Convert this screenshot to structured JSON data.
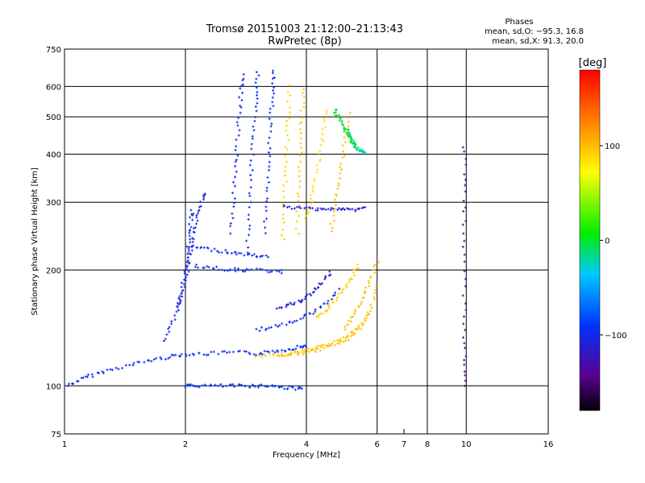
{
  "chart_data": {
    "type": "scatter",
    "title": "Tromsø 20151003 21:12:00–21:13:43",
    "subtitle": "RwPretec (8p)",
    "xlabel": "Frequency [MHz]",
    "ylabel": "Stationary phase Virtual Height [km]",
    "x_scale": "log",
    "y_scale": "log",
    "xlim": [
      1,
      16
    ],
    "ylim": [
      75,
      750
    ],
    "x_ticks": [
      1,
      2,
      4,
      6,
      8,
      10,
      16
    ],
    "x_tick_labels": [
      "1",
      "2",
      "4",
      "6",
      "8",
      "10",
      "16"
    ],
    "x_minor_ticks": [
      7
    ],
    "x_minor_tick_labels": [
      "7"
    ],
    "y_ticks": [
      75,
      100,
      200,
      300,
      400,
      500,
      600,
      750
    ],
    "y_tick_labels": [
      "75",
      "100",
      "200",
      "300",
      "400",
      "500",
      "600",
      "750"
    ],
    "grid": true,
    "phase_stats": {
      "heading": "Phases",
      "o_line": "mean, sd,O: −95.3, 16.8",
      "x_line": "mean, sd,X:  91.3, 20.0"
    },
    "colorbar": {
      "label": "[deg]",
      "range": [
        -180,
        180
      ],
      "ticks": [
        100,
        0,
        -100
      ],
      "tick_labels": [
        "100",
        "0",
        "−100"
      ],
      "colormap": "rainbow"
    },
    "colors": {
      "o_mode": "#1e3cff",
      "x_mode": "#e6e61e",
      "grid": "#000000"
    },
    "traces": [
      {
        "freq": [
          1.02,
          1.1,
          1.18,
          1.3,
          1.45,
          1.6,
          1.75,
          1.9,
          2.05,
          2.25,
          2.5,
          2.8,
          3.05,
          3.3,
          3.55,
          3.8,
          4.0
        ],
        "height": [
          100,
          104,
          107,
          110,
          113,
          116,
          118,
          120,
          121,
          121,
          122,
          122,
          121,
          123,
          124,
          126,
          127
        ],
        "phase": -95
      },
      {
        "freq": [
          2.0,
          2.1,
          2.25,
          2.5,
          2.7,
          2.9,
          3.1,
          3.3,
          3.5,
          3.7,
          3.9
        ],
        "height": [
          100,
          100,
          100,
          100,
          100,
          100,
          100,
          100,
          99,
          99,
          98
        ],
        "phase": -90
      },
      {
        "freq": [
          3.0,
          3.3,
          3.6,
          3.9,
          4.2,
          4.5,
          4.8,
          5.1,
          5.4,
          5.7
        ],
        "height": [
          119,
          120,
          121,
          123,
          125,
          128,
          131,
          135,
          142,
          155
        ],
        "phase": 95
      },
      {
        "freq": [
          3.4,
          3.7,
          4.0,
          4.3,
          4.6,
          4.9,
          5.2,
          5.5,
          5.8,
          6.0
        ],
        "height": [
          120,
          121,
          122,
          124,
          127,
          130,
          135,
          143,
          160,
          180
        ],
        "phase": 100
      },
      {
        "freq": [
          1.78,
          1.85,
          1.92,
          1.97,
          2.02,
          2.06,
          2.1,
          2.14,
          2.18,
          2.24
        ],
        "height": [
          130,
          145,
          160,
          178,
          200,
          222,
          248,
          272,
          295,
          318
        ],
        "phase": -105
      },
      {
        "freq": [
          1.92,
          1.95,
          2.0,
          2.02,
          2.04,
          2.06,
          2.08
        ],
        "height": [
          160,
          175,
          195,
          215,
          240,
          265,
          285
        ],
        "phase": -100
      },
      {
        "freq": [
          2.05,
          2.2,
          2.4,
          2.6,
          2.8,
          3.0,
          3.2
        ],
        "height": [
          230,
          228,
          225,
          222,
          220,
          218,
          216
        ],
        "phase": -95
      },
      {
        "freq": [
          2.1,
          2.3,
          2.5,
          2.7,
          2.9,
          3.2,
          3.5
        ],
        "height": [
          205,
          203,
          201,
          200,
          200,
          199,
          198
        ],
        "phase": -90
      },
      {
        "freq": [
          2.6,
          2.63,
          2.66,
          2.69,
          2.72,
          2.75,
          2.78
        ],
        "height": [
          250,
          300,
          360,
          420,
          500,
          580,
          640
        ],
        "phase": -100
      },
      {
        "freq": [
          2.85,
          2.88,
          2.91,
          2.94,
          2.97,
          3.0,
          3.03
        ],
        "height": [
          230,
          280,
          340,
          410,
          490,
          570,
          650
        ],
        "phase": -95
      },
      {
        "freq": [
          3.15,
          3.18,
          3.21,
          3.24,
          3.27,
          3.3,
          3.33
        ],
        "height": [
          250,
          300,
          360,
          430,
          510,
          590,
          660
        ],
        "phase": -98
      },
      {
        "freq": [
          3.5,
          3.52,
          3.55,
          3.58,
          3.6,
          3.63
        ],
        "height": [
          240,
          290,
          350,
          420,
          500,
          600
        ],
        "phase": 90
      },
      {
        "freq": [
          3.8,
          3.82,
          3.85,
          3.88,
          3.9,
          3.93
        ],
        "height": [
          250,
          300,
          360,
          430,
          500,
          590
        ],
        "phase": 95
      },
      {
        "freq": [
          3.5,
          3.8,
          4.1,
          4.4,
          4.7,
          5.0,
          5.3,
          5.6
        ],
        "height": [
          292,
          290,
          289,
          288,
          288,
          287,
          287,
          290
        ],
        "phase": -110
      },
      {
        "freq": [
          5.0,
          5.1,
          5.2,
          5.3,
          5.4,
          5.5,
          5.6
        ],
        "height": [
          470,
          450,
          435,
          420,
          410,
          405,
          402
        ],
        "phase": -20
      },
      {
        "freq": [
          4.7,
          4.8,
          4.9,
          5.0,
          5.1,
          5.2,
          5.3
        ],
        "height": [
          520,
          500,
          480,
          460,
          445,
          430,
          420
        ],
        "phase": 0
      },
      {
        "freq": [
          3.0,
          3.3,
          3.6,
          3.9,
          4.2,
          4.5,
          4.8
        ],
        "height": [
          140,
          142,
          145,
          150,
          156,
          165,
          178
        ],
        "phase": -100
      },
      {
        "freq": [
          3.4,
          3.6,
          3.8,
          4.0,
          4.2,
          4.4,
          4.6
        ],
        "height": [
          160,
          162,
          165,
          170,
          177,
          186,
          198
        ],
        "phase": -110
      },
      {
        "freq": [
          4.2,
          4.4,
          4.6,
          4.8,
          5.0,
          5.2,
          5.4
        ],
        "height": [
          150,
          155,
          162,
          170,
          180,
          192,
          205
        ],
        "phase": 90
      },
      {
        "freq": [
          5.0,
          5.2,
          5.4,
          5.6,
          5.8,
          6.0
        ],
        "height": [
          140,
          150,
          162,
          175,
          190,
          210
        ],
        "phase": 100
      },
      {
        "freq": [
          4.0,
          4.1,
          4.2,
          4.3,
          4.4,
          4.5
        ],
        "height": [
          270,
          300,
          340,
          390,
          450,
          520
        ],
        "phase": 85
      },
      {
        "freq": [
          4.6,
          4.7,
          4.8,
          4.9,
          5.0,
          5.1
        ],
        "height": [
          250,
          290,
          330,
          380,
          440,
          510
        ],
        "phase": 100
      },
      {
        "freq": [
          9.9,
          9.9,
          9.9,
          9.9,
          9.9,
          9.9,
          9.9
        ],
        "height": [
          100,
          120,
          150,
          200,
          260,
          330,
          420
        ],
        "phase": -140
      }
    ]
  }
}
